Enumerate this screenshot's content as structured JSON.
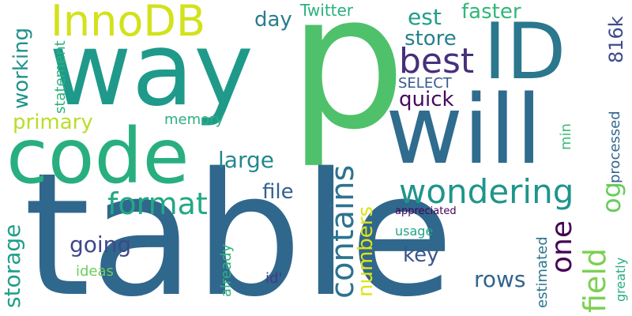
{
  "words": [
    {
      "text": "p",
      "color": "#4fc16b"
    },
    {
      "text": "table",
      "color": "#30678d"
    },
    {
      "text": "way",
      "color": "#1f9a8a"
    },
    {
      "text": "will",
      "color": "#2f6c8e"
    },
    {
      "text": "code",
      "color": "#29af7f"
    },
    {
      "text": "ID",
      "color": "#2a778e"
    },
    {
      "text": "InnoDB",
      "color": "#d2e21b"
    },
    {
      "text": "best",
      "color": "#46307c"
    },
    {
      "text": "wondering",
      "color": "#1f958b"
    },
    {
      "text": "contains",
      "color": "#2c738e"
    },
    {
      "text": "format",
      "color": "#22a884"
    },
    {
      "text": "quick",
      "color": "#450a5f"
    },
    {
      "text": "field",
      "color": "#7ad151"
    },
    {
      "text": "one",
      "color": "#440154"
    },
    {
      "text": "faster",
      "color": "#34b679"
    },
    {
      "text": "rows",
      "color": "#32648e"
    },
    {
      "text": "storage",
      "color": "#1f9e89"
    },
    {
      "text": "large",
      "color": "#23888e"
    },
    {
      "text": "going",
      "color": "#3f4889"
    },
    {
      "text": "key",
      "color": "#39558c"
    },
    {
      "text": "est",
      "color": "#1fa088"
    },
    {
      "text": "store",
      "color": "#27808e"
    },
    {
      "text": "primary",
      "color": "#b8de29"
    },
    {
      "text": "working",
      "color": "#20928c"
    },
    {
      "text": "numbers",
      "color": "#dde318"
    },
    {
      "text": "day",
      "color": "#287d8e"
    },
    {
      "text": "file",
      "color": "#34618d"
    },
    {
      "text": "816k",
      "color": "#3e4c8a"
    },
    {
      "text": "og",
      "color": "#67cc5c"
    },
    {
      "text": "Twitter",
      "color": "#2ab07f"
    },
    {
      "text": "SELECT",
      "color": "#375b8d"
    },
    {
      "text": "statement",
      "color": "#2db27d"
    },
    {
      "text": "memory",
      "color": "#2ab07f"
    },
    {
      "text": "processed",
      "color": "#31668e"
    },
    {
      "text": "min",
      "color": "#3bbb75"
    },
    {
      "text": "estimated",
      "color": "#2c738e"
    },
    {
      "text": "ideas",
      "color": "#6ccd5a"
    },
    {
      "text": "already",
      "color": "#2db27d"
    },
    {
      "text": "id'",
      "color": "#443a83"
    },
    {
      "text": "usage",
      "color": "#20a486"
    },
    {
      "text": "appreciated",
      "color": "#440154"
    },
    {
      "text": "greatly",
      "color": "#27ad81"
    }
  ]
}
